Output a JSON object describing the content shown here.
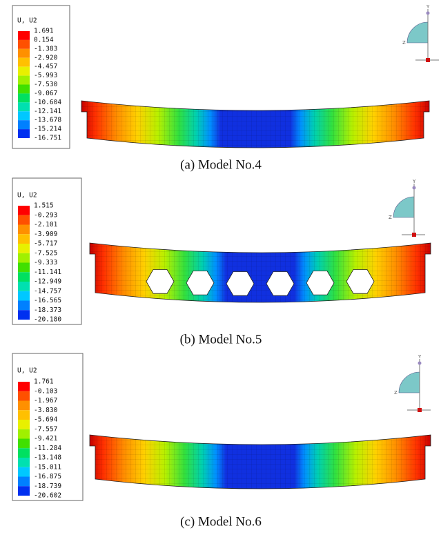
{
  "panels": [
    {
      "legend": {
        "title": "U, U2",
        "values": [
          "1.691",
          "0.154",
          "-1.383",
          "-2.920",
          "-4.457",
          "-5.993",
          "-7.530",
          "-9.067",
          "-10.604",
          "-12.141",
          "-13.678",
          "-15.214",
          "-16.751"
        ]
      },
      "triad": {
        "y": "Y",
        "z": "Z"
      },
      "caption": "(a) Model No.4"
    },
    {
      "legend": {
        "title": "U, U2",
        "values": [
          "1.515",
          "-0.293",
          "-2.101",
          "-3.909",
          "-5.717",
          "-7.525",
          "-9.333",
          "-11.141",
          "-12.949",
          "-14.757",
          "-16.565",
          "-18.373",
          "-20.180"
        ]
      },
      "triad": {
        "y": "Y",
        "z": "Z"
      },
      "caption": "(b) Model No.5"
    },
    {
      "legend": {
        "title": "U, U2",
        "values": [
          "1.761",
          "-0.103",
          "-1.967",
          "-3.830",
          "-5.694",
          "-7.557",
          "-9.421",
          "-11.284",
          "-13.148",
          "-15.011",
          "-16.875",
          "-18.739",
          "-20.602"
        ]
      },
      "triad": {
        "y": "Y",
        "z": "Z"
      },
      "caption": "(c) Model No.6"
    }
  ]
}
